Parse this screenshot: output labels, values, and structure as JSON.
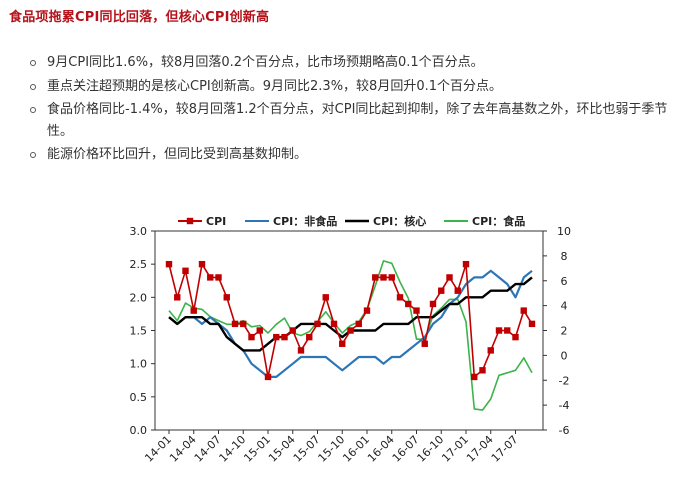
{
  "heading": "食品项拖累CPI同比回落，但核心CPI创新高",
  "bullets": [
    "9月CPI同比1.6%，较8月回落0.2个百分点，比市场预期略高0.1个百分点。",
    "重点关注超预期的是核心CPI创新高。9月同比2.3%，较8月回升0.1个百分点。",
    "食品价格同比-1.4%，较8月回落1.2个百分点，对CPI同比起到抑制，除了去年高基数之外，环比也弱于季节性。",
    "能源价格环比回升，但同比受到高基数抑制。"
  ],
  "chart_data": {
    "type": "line",
    "x_tick_labels": [
      "14-01",
      "14-04",
      "14-07",
      "14-10",
      "15-01",
      "15-04",
      "15-07",
      "15-10",
      "16-01",
      "16-04",
      "16-07",
      "16-10",
      "17-01",
      "17-04",
      "17-07"
    ],
    "x": [
      "14-01",
      "14-02",
      "14-03",
      "14-04",
      "14-05",
      "14-06",
      "14-07",
      "14-08",
      "14-09",
      "14-10",
      "14-11",
      "14-12",
      "15-01",
      "15-02",
      "15-03",
      "15-04",
      "15-05",
      "15-06",
      "15-07",
      "15-08",
      "15-09",
      "15-10",
      "15-11",
      "15-12",
      "16-01",
      "16-02",
      "16-03",
      "16-04",
      "16-05",
      "16-06",
      "16-07",
      "16-08",
      "16-09",
      "16-10",
      "16-11",
      "16-12",
      "17-01",
      "17-02",
      "17-03",
      "17-04",
      "17-05",
      "17-06",
      "17-07",
      "17-08",
      "17-09"
    ],
    "y_left": {
      "lim": [
        0.0,
        3.0
      ],
      "ticks": [
        "0.0",
        "0.5",
        "1.0",
        "1.5",
        "2.0",
        "2.5",
        "3.0"
      ]
    },
    "y_right": {
      "lim": [
        -6,
        10
      ],
      "ticks": [
        "-6",
        "-4",
        "-2",
        "0",
        "2",
        "4",
        "6",
        "8",
        "10"
      ]
    },
    "colors": {
      "cpi": "#c00000",
      "nonfood": "#2e75b6",
      "core": "#000000",
      "food": "#3cb44b"
    },
    "series": [
      {
        "name": "CPI",
        "axis": "left",
        "marker": "square",
        "values": [
          2.5,
          2.0,
          2.4,
          1.8,
          2.5,
          2.3,
          2.3,
          2.0,
          1.6,
          1.6,
          1.4,
          1.5,
          0.8,
          1.4,
          1.4,
          1.5,
          1.2,
          1.4,
          1.6,
          2.0,
          1.6,
          1.3,
          1.5,
          1.6,
          1.8,
          2.3,
          2.3,
          2.3,
          2.0,
          1.9,
          1.8,
          1.3,
          1.9,
          2.1,
          2.3,
          2.1,
          2.5,
          0.8,
          0.9,
          1.2,
          1.5,
          1.5,
          1.4,
          1.8,
          1.6
        ]
      },
      {
        "name": "CPI：非食品",
        "axis": "left",
        "values": [
          1.7,
          1.6,
          1.7,
          1.7,
          1.6,
          1.7,
          1.6,
          1.5,
          1.3,
          1.2,
          1.0,
          0.9,
          0.8,
          0.8,
          0.9,
          1.0,
          1.1,
          1.1,
          1.1,
          1.1,
          1.0,
          0.9,
          1.0,
          1.1,
          1.1,
          1.1,
          1.0,
          1.1,
          1.1,
          1.2,
          1.3,
          1.4,
          1.6,
          1.7,
          1.9,
          2.0,
          2.2,
          2.3,
          2.3,
          2.4,
          2.3,
          2.2,
          2.0,
          2.3,
          2.4
        ]
      },
      {
        "name": "CPI：核心",
        "axis": "left",
        "values": [
          1.7,
          1.6,
          1.7,
          1.7,
          1.7,
          1.6,
          1.6,
          1.4,
          1.3,
          1.2,
          1.2,
          1.2,
          1.3,
          1.4,
          1.4,
          1.5,
          1.6,
          1.6,
          1.6,
          1.6,
          1.5,
          1.4,
          1.5,
          1.5,
          1.5,
          1.5,
          1.6,
          1.6,
          1.6,
          1.6,
          1.7,
          1.7,
          1.7,
          1.8,
          1.9,
          1.9,
          2.0,
          2.0,
          2.0,
          2.1,
          2.1,
          2.1,
          2.2,
          2.2,
          2.3
        ]
      },
      {
        "name": "CPI：食品",
        "axis": "right",
        "values": [
          3.6,
          2.8,
          4.2,
          3.8,
          3.7,
          3.1,
          2.8,
          2.5,
          2.5,
          2.8,
          2.3,
          2.4,
          1.8,
          2.5,
          3.0,
          1.8,
          1.6,
          1.9,
          2.7,
          3.5,
          2.6,
          1.8,
          2.4,
          2.7,
          3.7,
          5.6,
          7.6,
          7.4,
          5.9,
          4.6,
          1.3,
          1.3,
          3.2,
          3.8,
          4.5,
          4.5,
          2.7,
          -4.3,
          -4.4,
          -3.5,
          -1.6,
          -1.4,
          -1.2,
          -0.2,
          -1.4
        ]
      }
    ]
  }
}
